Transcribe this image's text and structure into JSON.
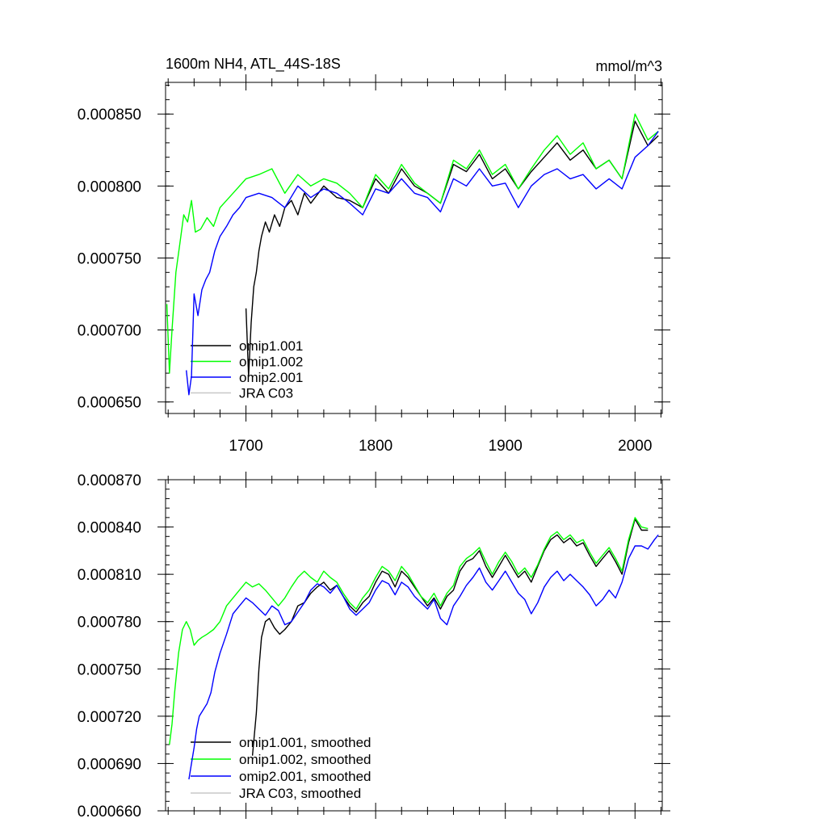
{
  "chart_data": [
    {
      "type": "line",
      "title": "1600m NH4, ATL_44S-18S",
      "unit_label": "mmol/m^3",
      "xlim": [
        1638,
        2021
      ],
      "ylim": [
        0.000642,
        0.000872
      ],
      "x_ticks": [
        1700,
        1800,
        1900,
        2000
      ],
      "x_tick_labels": [
        "1700",
        "1800",
        "1900",
        "2000"
      ],
      "y_ticks": [
        0.00065,
        0.0007,
        0.00075,
        0.0008,
        0.00085
      ],
      "y_tick_labels": [
        "0.000650",
        "0.000700",
        "0.000750",
        "0.000800",
        "0.000850"
      ],
      "grid": false,
      "legend_position": "bottom-left",
      "series": [
        {
          "name": "omip1.001",
          "color": "#000000",
          "x": [
            1700,
            1702,
            1704,
            1706,
            1708,
            1710,
            1712,
            1715,
            1718,
            1722,
            1726,
            1730,
            1735,
            1740,
            1745,
            1750,
            1760,
            1770,
            1780,
            1790,
            1800,
            1810,
            1820,
            1830,
            1840,
            1850,
            1860,
            1870,
            1880,
            1890,
            1900,
            1910,
            1920,
            1930,
            1940,
            1950,
            1960,
            1970,
            1980,
            1990,
            2000,
            2010,
            2018
          ],
          "y": [
            0.000715,
            0.000668,
            0.000705,
            0.00073,
            0.00074,
            0.000755,
            0.000765,
            0.000775,
            0.000768,
            0.00078,
            0.000772,
            0.000785,
            0.00079,
            0.00078,
            0.000795,
            0.000788,
            0.0008,
            0.000792,
            0.00079,
            0.000785,
            0.000805,
            0.000795,
            0.000812,
            0.0008,
            0.000795,
            0.000788,
            0.000815,
            0.00081,
            0.000822,
            0.000805,
            0.000812,
            0.000798,
            0.00081,
            0.00082,
            0.00083,
            0.000818,
            0.000825,
            0.000812,
            0.000818,
            0.000805,
            0.000845,
            0.000828,
            0.000835
          ]
        },
        {
          "name": "omip1.002",
          "color": "#00ff00",
          "x": [
            1639,
            1641,
            1643,
            1646,
            1649,
            1652,
            1655,
            1658,
            1661,
            1665,
            1670,
            1675,
            1680,
            1690,
            1700,
            1710,
            1720,
            1730,
            1740,
            1750,
            1760,
            1770,
            1780,
            1790,
            1800,
            1810,
            1820,
            1830,
            1840,
            1850,
            1860,
            1870,
            1880,
            1890,
            1900,
            1910,
            1920,
            1930,
            1940,
            1950,
            1960,
            1970,
            1980,
            1990,
            2000,
            2010,
            2018
          ],
          "y": [
            0.000718,
            0.00067,
            0.0007,
            0.00074,
            0.00076,
            0.00078,
            0.000775,
            0.00079,
            0.000768,
            0.00077,
            0.000778,
            0.000772,
            0.000785,
            0.000795,
            0.000805,
            0.000808,
            0.000812,
            0.000795,
            0.000808,
            0.0008,
            0.000805,
            0.000802,
            0.000795,
            0.000785,
            0.000808,
            0.000798,
            0.000815,
            0.000802,
            0.000795,
            0.000788,
            0.000818,
            0.000812,
            0.000825,
            0.000808,
            0.000815,
            0.000798,
            0.000812,
            0.000825,
            0.000835,
            0.000822,
            0.00083,
            0.000812,
            0.000818,
            0.000805,
            0.00085,
            0.000832,
            0.000838
          ]
        },
        {
          "name": "omip2.001",
          "color": "#0000ff",
          "x": [
            1654,
            1656,
            1658,
            1660,
            1663,
            1666,
            1669,
            1672,
            1676,
            1680,
            1685,
            1690,
            1695,
            1700,
            1710,
            1720,
            1730,
            1740,
            1750,
            1760,
            1770,
            1780,
            1790,
            1800,
            1810,
            1820,
            1830,
            1840,
            1850,
            1860,
            1870,
            1880,
            1890,
            1900,
            1910,
            1920,
            1930,
            1940,
            1950,
            1960,
            1970,
            1980,
            1990,
            2000,
            2010,
            2018
          ],
          "y": [
            0.000672,
            0.000655,
            0.000668,
            0.000725,
            0.00071,
            0.000728,
            0.000735,
            0.00074,
            0.000755,
            0.000765,
            0.000772,
            0.00078,
            0.000785,
            0.000792,
            0.000795,
            0.000792,
            0.000785,
            0.0008,
            0.000792,
            0.000798,
            0.000795,
            0.000788,
            0.00078,
            0.000798,
            0.000795,
            0.000805,
            0.000795,
            0.000792,
            0.000782,
            0.000805,
            0.0008,
            0.000812,
            0.0008,
            0.000802,
            0.000785,
            0.0008,
            0.000808,
            0.000812,
            0.000805,
            0.000808,
            0.000798,
            0.000805,
            0.000798,
            0.00082,
            0.000828,
            0.000838
          ]
        },
        {
          "name": "JRA C03",
          "color": "#c8c8c8",
          "x": [],
          "y": []
        }
      ]
    },
    {
      "type": "line",
      "title": "",
      "xlim": [
        1638,
        2021
      ],
      "ylim": [
        0.00066,
        0.00087
      ],
      "x_ticks": [
        1700,
        1800,
        1900,
        2000
      ],
      "x_tick_labels": [],
      "y_ticks": [
        0.00066,
        0.00069,
        0.00072,
        0.00075,
        0.00078,
        0.00081,
        0.00084,
        0.00087
      ],
      "y_tick_labels": [
        "0.000660",
        "0.000690",
        "0.000720",
        "0.000750",
        "0.000780",
        "0.000810",
        "0.000840",
        "0.000870"
      ],
      "grid": false,
      "legend_position": "bottom-left",
      "series": [
        {
          "name": "omip1.001, smoothed",
          "color": "#000000",
          "x": [
            1705,
            1708,
            1710,
            1712,
            1715,
            1718,
            1722,
            1726,
            1730,
            1735,
            1740,
            1745,
            1750,
            1755,
            1760,
            1765,
            1770,
            1775,
            1780,
            1785,
            1790,
            1795,
            1800,
            1805,
            1810,
            1815,
            1820,
            1825,
            1830,
            1835,
            1840,
            1845,
            1850,
            1855,
            1860,
            1865,
            1870,
            1875,
            1880,
            1885,
            1890,
            1895,
            1900,
            1905,
            1910,
            1915,
            1920,
            1925,
            1930,
            1935,
            1940,
            1945,
            1950,
            1955,
            1960,
            1965,
            1970,
            1975,
            1980,
            1985,
            1990,
            1995,
            2000,
            2005,
            2010
          ],
          "y": [
            0.000695,
            0.000722,
            0.00075,
            0.00077,
            0.00078,
            0.000782,
            0.000776,
            0.000772,
            0.000775,
            0.00078,
            0.00079,
            0.000792,
            0.000798,
            0.000802,
            0.000805,
            0.0008,
            0.000803,
            0.000796,
            0.00079,
            0.000786,
            0.000792,
            0.000796,
            0.000805,
            0.000812,
            0.00081,
            0.000802,
            0.000812,
            0.000808,
            0.000802,
            0.000796,
            0.00079,
            0.000795,
            0.000788,
            0.000796,
            0.0008,
            0.000812,
            0.000818,
            0.00082,
            0.000825,
            0.000815,
            0.000808,
            0.000815,
            0.000822,
            0.000815,
            0.000808,
            0.000812,
            0.000805,
            0.000815,
            0.000825,
            0.000832,
            0.000835,
            0.00083,
            0.000833,
            0.000828,
            0.00083,
            0.000822,
            0.000815,
            0.00082,
            0.000825,
            0.000818,
            0.00081,
            0.00083,
            0.000845,
            0.000838,
            0.000838
          ]
        },
        {
          "name": "omip1.002, smoothed",
          "color": "#00ff00",
          "x": [
            1641,
            1643,
            1645,
            1648,
            1651,
            1654,
            1657,
            1660,
            1663,
            1666,
            1670,
            1675,
            1680,
            1685,
            1690,
            1695,
            1700,
            1705,
            1710,
            1715,
            1720,
            1725,
            1730,
            1735,
            1740,
            1745,
            1750,
            1755,
            1760,
            1765,
            1770,
            1775,
            1780,
            1785,
            1790,
            1795,
            1800,
            1805,
            1810,
            1815,
            1820,
            1825,
            1830,
            1835,
            1840,
            1845,
            1850,
            1855,
            1860,
            1865,
            1870,
            1875,
            1880,
            1885,
            1890,
            1895,
            1900,
            1905,
            1910,
            1915,
            1920,
            1925,
            1930,
            1935,
            1940,
            1945,
            1950,
            1955,
            1960,
            1965,
            1970,
            1975,
            1980,
            1985,
            1990,
            1995,
            2000,
            2005,
            2010
          ],
          "y": [
            0.000702,
            0.000715,
            0.000735,
            0.00076,
            0.000775,
            0.00078,
            0.000775,
            0.000765,
            0.000768,
            0.00077,
            0.000772,
            0.000775,
            0.00078,
            0.00079,
            0.000795,
            0.0008,
            0.000805,
            0.000802,
            0.000804,
            0.0008,
            0.000795,
            0.00079,
            0.000795,
            0.000802,
            0.000808,
            0.000812,
            0.000808,
            0.000805,
            0.000812,
            0.000808,
            0.000805,
            0.000798,
            0.000792,
            0.000788,
            0.000795,
            0.0008,
            0.000808,
            0.000815,
            0.000812,
            0.000806,
            0.000815,
            0.00081,
            0.000803,
            0.000796,
            0.000792,
            0.000798,
            0.00079,
            0.000798,
            0.000803,
            0.000815,
            0.00082,
            0.000823,
            0.000827,
            0.000818,
            0.00081,
            0.000818,
            0.000824,
            0.000818,
            0.00081,
            0.000814,
            0.000808,
            0.000816,
            0.000826,
            0.000834,
            0.000837,
            0.000832,
            0.000835,
            0.00083,
            0.000832,
            0.000824,
            0.000817,
            0.000822,
            0.000827,
            0.00082,
            0.000812,
            0.000832,
            0.000846,
            0.00084,
            0.000839
          ]
        },
        {
          "name": "omip2.001, smoothed",
          "color": "#0000ff",
          "x": [
            1656,
            1658,
            1660,
            1662,
            1664,
            1667,
            1670,
            1673,
            1676,
            1680,
            1685,
            1690,
            1695,
            1700,
            1705,
            1710,
            1715,
            1720,
            1725,
            1730,
            1735,
            1740,
            1745,
            1750,
            1755,
            1760,
            1765,
            1770,
            1775,
            1780,
            1785,
            1790,
            1795,
            1800,
            1805,
            1810,
            1815,
            1820,
            1825,
            1830,
            1835,
            1840,
            1845,
            1850,
            1855,
            1860,
            1865,
            1870,
            1875,
            1880,
            1885,
            1890,
            1895,
            1900,
            1905,
            1910,
            1915,
            1920,
            1925,
            1930,
            1935,
            1940,
            1945,
            1950,
            1955,
            1960,
            1965,
            1970,
            1975,
            1980,
            1985,
            1990,
            1995,
            2000,
            2005,
            2010,
            2015,
            2018
          ],
          "y": [
            0.00068,
            0.00069,
            0.0007,
            0.000712,
            0.00072,
            0.000724,
            0.000728,
            0.000735,
            0.000748,
            0.00076,
            0.000772,
            0.000785,
            0.00079,
            0.000795,
            0.000792,
            0.000788,
            0.000784,
            0.00079,
            0.000787,
            0.000778,
            0.00078,
            0.000786,
            0.000792,
            0.0008,
            0.000804,
            0.000802,
            0.000798,
            0.000803,
            0.000796,
            0.000788,
            0.000784,
            0.000788,
            0.000792,
            0.0008,
            0.000806,
            0.000804,
            0.000797,
            0.000805,
            0.000802,
            0.000796,
            0.000792,
            0.000788,
            0.000794,
            0.000782,
            0.000778,
            0.00079,
            0.000796,
            0.000803,
            0.000808,
            0.000814,
            0.000805,
            0.0008,
            0.000806,
            0.000812,
            0.000805,
            0.000798,
            0.000794,
            0.000785,
            0.000792,
            0.000802,
            0.000808,
            0.000812,
            0.000806,
            0.00081,
            0.000806,
            0.000802,
            0.000797,
            0.00079,
            0.000794,
            0.0008,
            0.000795,
            0.000805,
            0.00082,
            0.000828,
            0.000828,
            0.000826,
            0.000832,
            0.000835
          ]
        },
        {
          "name": "JRA C03, smoothed",
          "color": "#c8c8c8",
          "x": [],
          "y": []
        }
      ]
    }
  ]
}
